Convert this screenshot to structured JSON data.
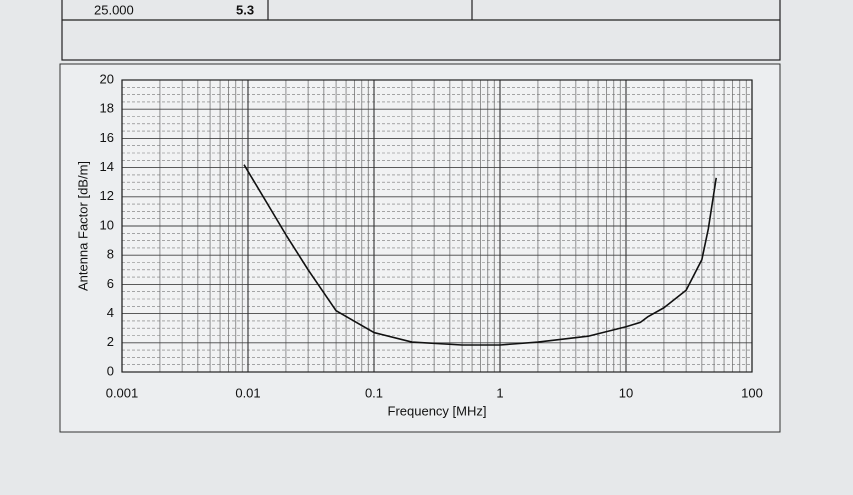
{
  "table": {
    "rows": [
      [
        "25.000",
        "5.3"
      ]
    ]
  },
  "chart_data": {
    "type": "line",
    "x_label": "Frequency [MHz]",
    "y_label": "Antenna Factor [dB/m]",
    "x": [
      0.0093,
      0.02,
      0.03,
      0.05,
      0.1,
      0.2,
      0.5,
      1,
      2,
      5,
      10,
      13,
      15,
      20,
      30,
      40,
      45,
      52
    ],
    "series": [
      {
        "color": "#111111",
        "values": [
          14.2,
          9.4,
          7.0,
          4.2,
          2.7,
          2.05,
          1.85,
          1.85,
          2.05,
          2.45,
          3.1,
          3.4,
          3.8,
          4.4,
          5.6,
          7.7,
          9.8,
          13.3
        ]
      }
    ],
    "xlim": [
      0.001,
      100
    ],
    "xticks": [
      0.001,
      0.01,
      0.1,
      1,
      10,
      100
    ],
    "xscale": "log",
    "ylim": [
      0,
      20
    ],
    "yticks": [
      0,
      2,
      4,
      6,
      8,
      10,
      12,
      14,
      16,
      18,
      20
    ],
    "grid": true,
    "minor_grid": true
  }
}
